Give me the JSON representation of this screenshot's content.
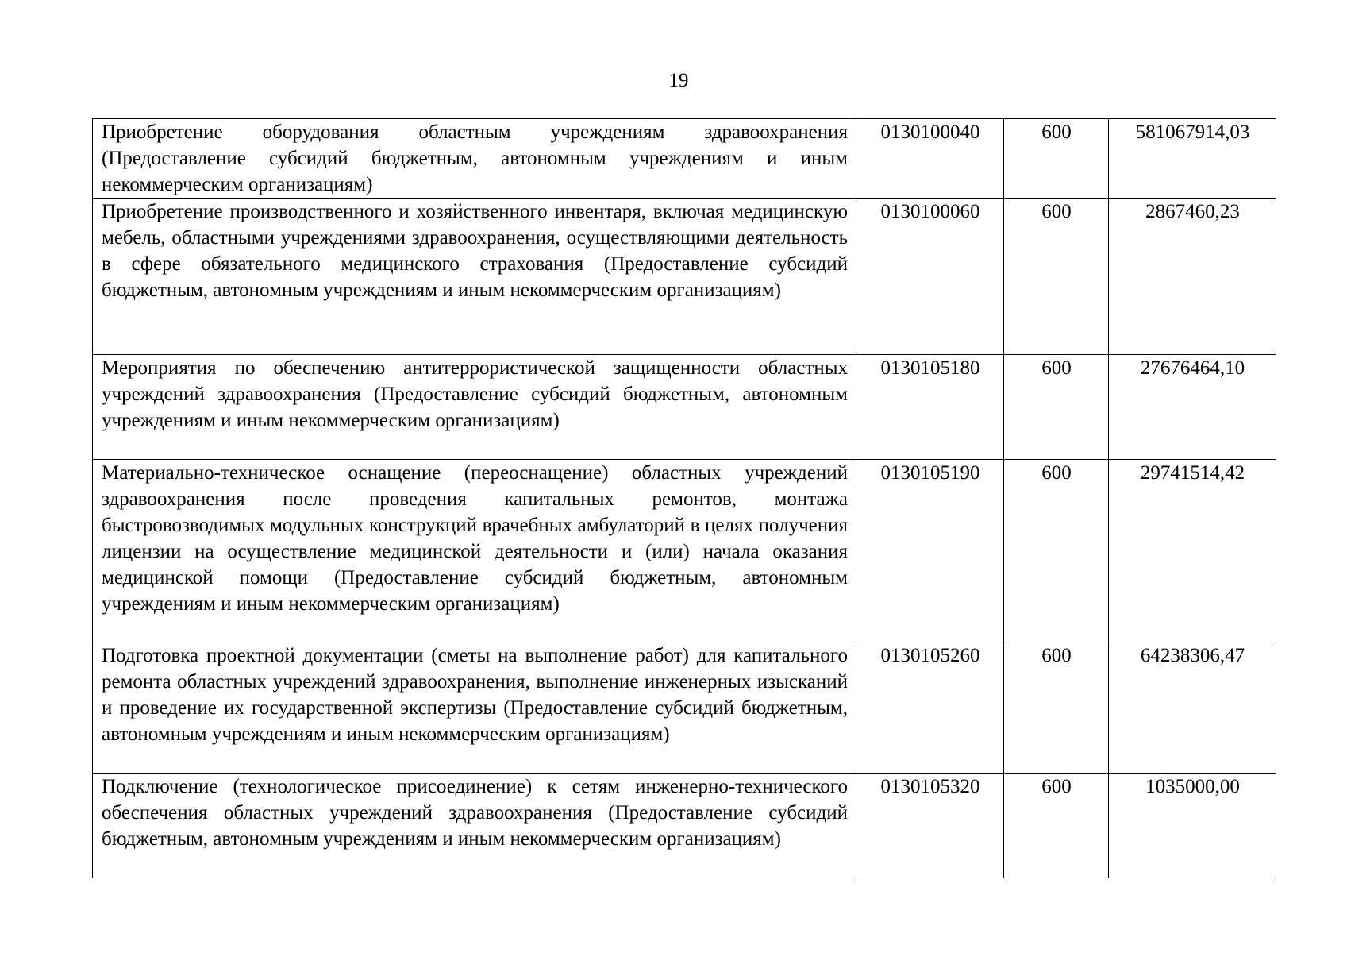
{
  "page_number": "19",
  "rows": [
    {
      "description": "Приобретение оборудования областным учреждениям здравоохранения (Предоставление субсидий бюджетным, автономным учреждениям и иным некоммерческим организациям)",
      "code": "0130100040",
      "type": "600",
      "amount": "581067914,03"
    },
    {
      "description": "Приобретение производственного и хозяйственного инвентаря, включая медицинскую мебель, областными учреждениями здравоохранения, осуществляющими деятельность в сфере обязательного медицинского страхования (Предоставление субсидий бюджетным, автономным учреждениям и иным некоммерческим организациям)",
      "code": "0130100060",
      "type": "600",
      "amount": "2867460,23"
    },
    {
      "description": "Мероприятия по обеспечению антитеррористической защищенности областных учреждений здравоохранения (Предоставление субсидий бюджетным, автономным учреждениям и иным некоммерческим организациям)",
      "code": "0130105180",
      "type": "600",
      "amount": "27676464,10"
    },
    {
      "description": "Материально-техническое оснащение (переоснащение) областных учреждений здравоохранения после проведения капитальных ремонтов, монтажа быстровозводимых модульных конструкций врачебных амбулаторий в целях получения лицензии на осуществление медицинской деятельности и (или) начала оказания медицинской помощи (Предоставление субсидий бюджетным, автономным учреждениям и иным некоммерческим организациям)",
      "code": "0130105190",
      "type": "600",
      "amount": "29741514,42"
    },
    {
      "description": "Подготовка проектной документации (сметы на выполнение работ) для капитального ремонта областных учреждений здравоохранения, выполнение инженерных изысканий и проведение их государственной экспертизы (Предоставление субсидий бюджетным, автономным учреждениям и иным некоммерческим организациям)",
      "code": "0130105260",
      "type": "600",
      "amount": "64238306,47"
    },
    {
      "description": "Подключение (технологическое присоединение) к сетям инженерно-технического обеспечения областных учреждений здравоохранения (Предоставление субсидий бюджетным, автономным учреждениям и иным некоммерческим организациям)",
      "code": "0130105320",
      "type": "600",
      "amount": "1035000,00"
    }
  ]
}
